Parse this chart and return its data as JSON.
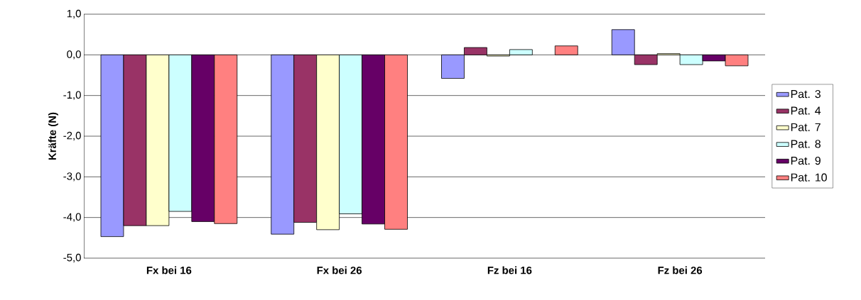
{
  "chart_data": {
    "type": "bar",
    "ylabel": "Kräfte (N)",
    "categories": [
      "Fx bei 16",
      "Fx bei 26",
      "Fz bei 16",
      "Fz bei 26"
    ],
    "series": [
      {
        "name": "Pat. 3",
        "color": "#9999ff",
        "values": [
          -4.47,
          -4.41,
          -0.58,
          0.62
        ]
      },
      {
        "name": "Pat. 4",
        "color": "#993366",
        "values": [
          -4.2,
          -4.12,
          0.18,
          -0.24
        ]
      },
      {
        "name": "Pat. 7",
        "color": "#ffffcc",
        "values": [
          -4.2,
          -4.3,
          -0.03,
          0.03
        ]
      },
      {
        "name": "Pat. 8",
        "color": "#ccffff",
        "values": [
          -3.85,
          -3.91,
          0.13,
          -0.24
        ]
      },
      {
        "name": "Pat. 9",
        "color": "#660066",
        "values": [
          -4.1,
          -4.16,
          null,
          -0.15
        ]
      },
      {
        "name": "Pat. 10",
        "color": "#ff8080",
        "values": [
          -4.15,
          -4.29,
          0.22,
          -0.27
        ]
      }
    ],
    "ylim": [
      -5,
      1
    ],
    "yticks": [
      {
        "value": -5,
        "label": "-5,0"
      },
      {
        "value": -4,
        "label": "-4,0"
      },
      {
        "value": -3,
        "label": "-3,0"
      },
      {
        "value": -2,
        "label": "-2,0"
      },
      {
        "value": -1,
        "label": "-1,0"
      },
      {
        "value": 0,
        "label": "0,0"
      },
      {
        "value": 1,
        "label": "1,0"
      }
    ],
    "grid": "y",
    "legend": "right"
  }
}
